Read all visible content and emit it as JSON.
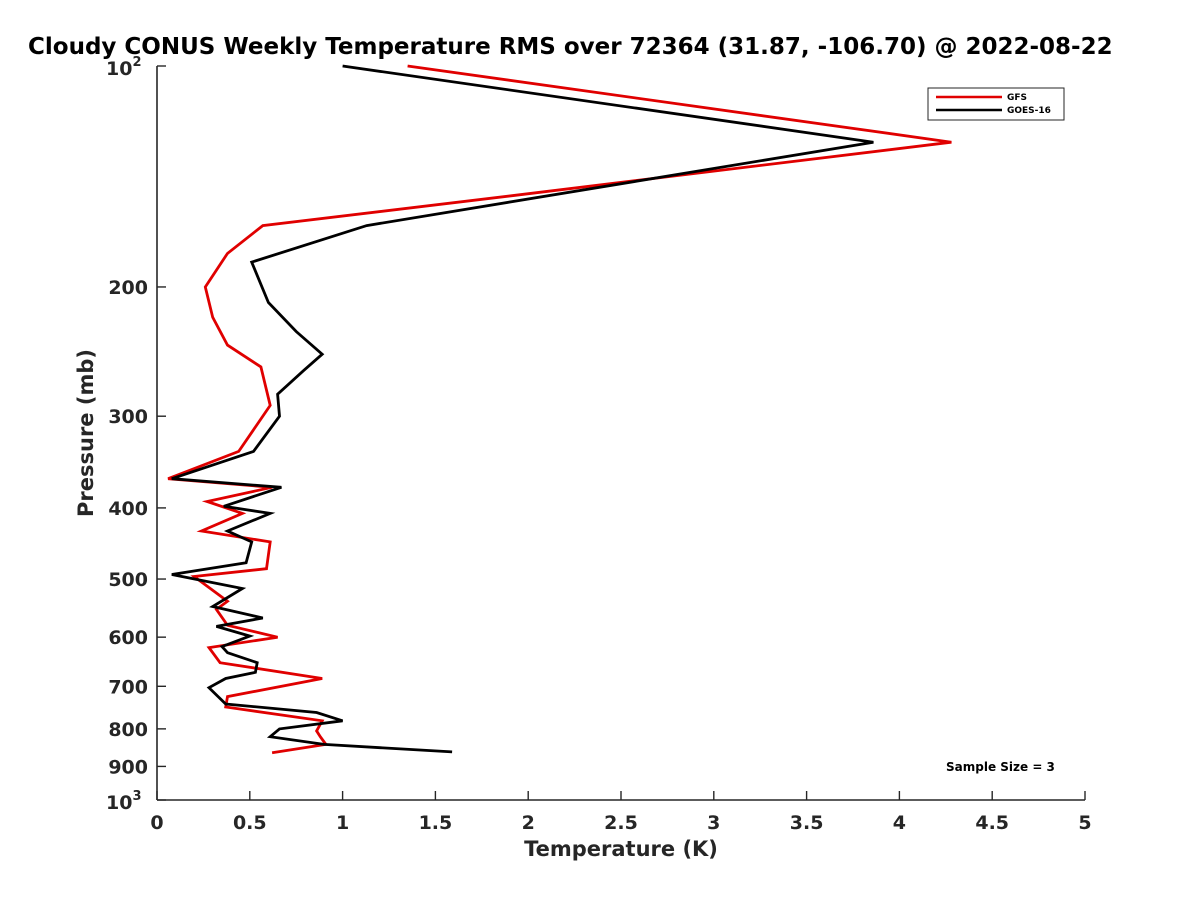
{
  "chart_data": {
    "type": "line",
    "title": "Cloudy CONUS Weekly Temperature RMS over 72364 (31.87, -106.70) @ 2022-08-22",
    "xlabel": "Temperature (K)",
    "ylabel": "Pressure (mb)",
    "xlim": [
      0,
      5
    ],
    "ylim": [
      100,
      1000
    ],
    "y_scale": "log",
    "y_reversed": true,
    "x_ticks": [
      "0",
      "0.5",
      "1",
      "1.5",
      "2",
      "2.5",
      "3",
      "3.5",
      "4",
      "4.5",
      "5"
    ],
    "y_ticks": [
      {
        "value": 100,
        "base": "10",
        "exp": "2"
      },
      {
        "value": 200,
        "label": "200"
      },
      {
        "value": 300,
        "label": "300"
      },
      {
        "value": 400,
        "label": "400"
      },
      {
        "value": 500,
        "label": "500"
      },
      {
        "value": 600,
        "label": "600"
      },
      {
        "value": 700,
        "label": "700"
      },
      {
        "value": 800,
        "label": "800"
      },
      {
        "value": 900,
        "label": "900"
      },
      {
        "value": 1000,
        "base": "10",
        "exp": "3"
      }
    ],
    "legend_position": "top-right",
    "annotation": "Sample Size = 3",
    "series": [
      {
        "name": "GFS",
        "color": "#e00000",
        "x": [
          1.35,
          4.28,
          1.93,
          0.57,
          0.38,
          0.26,
          0.3,
          0.38,
          0.56,
          0.61,
          0.44,
          0.06,
          0.62,
          0.27,
          0.46,
          0.24,
          0.61,
          0.59,
          0.2,
          0.38,
          0.32,
          0.38,
          0.65,
          0.28,
          0.34,
          0.89,
          0.38,
          0.37,
          0.89,
          0.86,
          0.88,
          0.91,
          0.62
        ],
        "y": [
          100,
          127,
          150,
          165,
          180,
          200,
          220,
          240,
          257,
          290,
          335,
          365,
          375,
          392,
          407,
          430,
          445,
          484,
          496,
          536,
          550,
          578,
          600,
          620,
          650,
          683,
          723,
          747,
          780,
          805,
          820,
          840,
          862
        ]
      },
      {
        "name": "GOES-16",
        "color": "#000000",
        "x": [
          1.0,
          3.86,
          1.13,
          0.51,
          0.6,
          0.75,
          0.89,
          0.79,
          0.65,
          0.66,
          0.52,
          0.08,
          0.67,
          0.36,
          0.61,
          0.38,
          0.51,
          0.48,
          0.08,
          0.46,
          0.3,
          0.57,
          0.32,
          0.5,
          0.35,
          0.38,
          0.54,
          0.53,
          0.37,
          0.28,
          0.37,
          0.86,
          1.0,
          0.66,
          0.61,
          0.9,
          1.59
        ],
        "y": [
          100,
          127,
          165,
          185,
          210,
          230,
          247,
          260,
          280,
          300,
          335,
          365,
          375,
          398,
          407,
          430,
          445,
          475,
          493,
          515,
          545,
          565,
          580,
          598,
          618,
          630,
          650,
          670,
          683,
          703,
          740,
          760,
          780,
          800,
          820,
          840,
          860
        ]
      }
    ]
  }
}
